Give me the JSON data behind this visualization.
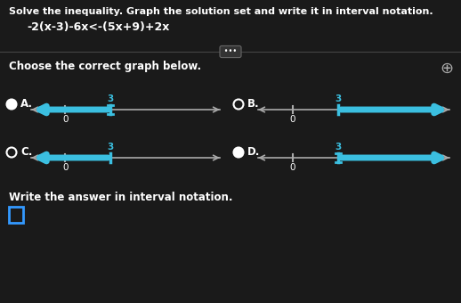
{
  "bg_color": "#1a1a1a",
  "title_line1": "Solve the inequality. Graph the solution set and write it in interval notation.",
  "equation": "-2(x−3)−6x<−(5x+9)+2x",
  "choose_text": "Choose the correct graph below.",
  "write_text": "Write the answer in interval notation.",
  "text_color": "#ffffff",
  "cyan_color": "#3bbfe0",
  "axis_color": "#aaaaaa",
  "divider_color": "#555555",
  "radio_A_filled": true,
  "radio_B_filled": false,
  "radio_C_filled": false,
  "radio_D_filled": true,
  "graphs": [
    {
      "label": "A.",
      "blue_left": true,
      "blue_right": false,
      "closed_bracket": true
    },
    {
      "label": "B.",
      "blue_left": false,
      "blue_right": true,
      "closed_bracket": false
    },
    {
      "label": "C.",
      "blue_left": true,
      "blue_right": false,
      "closed_bracket": false
    },
    {
      "label": "D.",
      "blue_left": false,
      "blue_right": true,
      "closed_bracket": true
    }
  ]
}
